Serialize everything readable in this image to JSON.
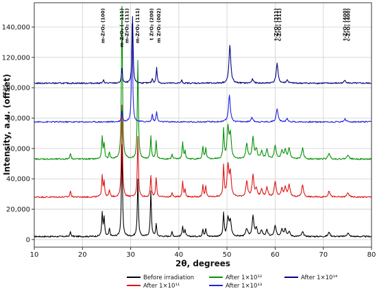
{
  "chart_data": {
    "type": "line",
    "xlabel": "2θ, degrees",
    "ylabel": "Intensity, a.u. (offset)",
    "xlim": [
      10,
      80
    ],
    "ylim": [
      -5000,
      156000
    ],
    "x_ticks": [
      10,
      20,
      30,
      40,
      50,
      60,
      70,
      80
    ],
    "y_ticks": [
      0,
      20000,
      40000,
      60000,
      80000,
      100000,
      120000,
      140000
    ],
    "x_tick_labels": [
      "10",
      "20",
      "30",
      "40",
      "50",
      "60",
      "70",
      "80"
    ],
    "y_tick_labels": [
      "0",
      "20,000",
      "40,000",
      "60,000",
      "80,000",
      "100,000",
      "120,000",
      "140,000"
    ],
    "grid": "major gridlines on both axes",
    "legend_placement": "bottom, below axis",
    "peak_annotations": [
      {
        "label": "m-ZrO₂ (100)",
        "x": 24.3
      },
      {
        "label": "m-ZrO₂ (−111)",
        "x": 28.2
      },
      {
        "label": "m-ZrO₂ (111)",
        "x": 29.3
      },
      {
        "label": "m-ZrO₂ (111)",
        "x": 31.5
      },
      {
        "label": "t ZrO₂ (200)",
        "x": 34.4
      },
      {
        "label": "m ZrO₂ (002)",
        "x": 35.9
      },
      {
        "label": "t-ZrO₂ (311)",
        "x": 60.2
      },
      {
        "label": "c-ZrO₂ (311)",
        "x": 60.9
      },
      {
        "label": "t-ZrO₂ (400)",
        "x": 74.5
      },
      {
        "label": "c-ZrO₂ (400)",
        "x": 75.2
      }
    ],
    "series": [
      {
        "name": "Before irradiation",
        "color": "#000000",
        "baseline": 2000,
        "peaks": [
          [
            17.5,
            3000
          ],
          [
            24.1,
            15000
          ],
          [
            24.5,
            12000
          ],
          [
            25.6,
            5000
          ],
          [
            28.2,
            60000
          ],
          [
            31.5,
            38000
          ],
          [
            34.2,
            30000
          ],
          [
            35.3,
            8000
          ],
          [
            38.6,
            3000
          ],
          [
            40.8,
            7000
          ],
          [
            41.3,
            4000
          ],
          [
            45.0,
            5000
          ],
          [
            45.6,
            5000
          ],
          [
            49.3,
            15000
          ],
          [
            50.2,
            12000
          ],
          [
            50.7,
            10000
          ],
          [
            54.1,
            5000
          ],
          [
            55.4,
            13000
          ],
          [
            56.1,
            5000
          ],
          [
            57.2,
            4000
          ],
          [
            58.3,
            4000
          ],
          [
            60.0,
            7000
          ],
          [
            61.4,
            5000
          ],
          [
            62.1,
            5000
          ],
          [
            62.9,
            3000
          ],
          [
            65.7,
            3000
          ],
          [
            71.2,
            3000
          ],
          [
            75.1,
            2500
          ]
        ]
      },
      {
        "name": "After 1×10¹¹",
        "color": "#e01010",
        "baseline": 28000,
        "peaks": [
          [
            17.5,
            4000
          ],
          [
            24.1,
            14000
          ],
          [
            24.5,
            10000
          ],
          [
            25.6,
            4500
          ],
          [
            28.2,
            60000
          ],
          [
            31.5,
            40000
          ],
          [
            34.2,
            14000
          ],
          [
            35.3,
            13000
          ],
          [
            38.6,
            3000
          ],
          [
            40.8,
            10000
          ],
          [
            41.3,
            5000
          ],
          [
            45.0,
            8000
          ],
          [
            45.6,
            7000
          ],
          [
            49.3,
            20000
          ],
          [
            50.2,
            20000
          ],
          [
            50.7,
            15000
          ],
          [
            54.1,
            10000
          ],
          [
            55.4,
            14000
          ],
          [
            56.1,
            5000
          ],
          [
            57.2,
            5000
          ],
          [
            58.3,
            6000
          ],
          [
            60.0,
            10000
          ],
          [
            61.4,
            5000
          ],
          [
            62.1,
            6000
          ],
          [
            62.9,
            8000
          ],
          [
            65.7,
            8000
          ],
          [
            71.2,
            4000
          ],
          [
            75.1,
            3000
          ]
        ]
      },
      {
        "name": "After 1×10¹²",
        "color": "#009000",
        "baseline": 53000,
        "peaks": [
          [
            17.5,
            4000
          ],
          [
            24.1,
            14000
          ],
          [
            24.5,
            10000
          ],
          [
            25.6,
            4500
          ],
          [
            28.2,
            101000
          ],
          [
            31.5,
            65000
          ],
          [
            34.2,
            15000
          ],
          [
            35.3,
            12000
          ],
          [
            38.6,
            3000
          ],
          [
            40.8,
            11000
          ],
          [
            41.3,
            5000
          ],
          [
            45.0,
            8000
          ],
          [
            45.6,
            7000
          ],
          [
            49.3,
            19000
          ],
          [
            50.2,
            20000
          ],
          [
            50.7,
            16000
          ],
          [
            54.1,
            10000
          ],
          [
            55.4,
            14000
          ],
          [
            56.1,
            6000
          ],
          [
            57.2,
            5000
          ],
          [
            58.3,
            6000
          ],
          [
            60.0,
            9000
          ],
          [
            61.4,
            5000
          ],
          [
            62.1,
            6000
          ],
          [
            62.9,
            7000
          ],
          [
            65.7,
            7000
          ],
          [
            71.2,
            4000
          ],
          [
            75.1,
            3000
          ]
        ]
      },
      {
        "name": "After 1×10¹³",
        "color": "#2020e0",
        "baseline": 77500,
        "peaks": [
          [
            28.2,
            8000
          ],
          [
            30.3,
            65000
          ],
          [
            34.5,
            5000
          ],
          [
            35.4,
            7000
          ],
          [
            50.5,
            18000
          ],
          [
            55.2,
            3000
          ],
          [
            60.4,
            9000
          ],
          [
            62.5,
            2000
          ],
          [
            74.5,
            2000
          ]
        ]
      },
      {
        "name": "After 1×10¹⁴",
        "color": "#000080",
        "baseline": 103000,
        "peaks": [
          [
            24.4,
            2000
          ],
          [
            28.2,
            10000
          ],
          [
            30.4,
            44000
          ],
          [
            34.5,
            3000
          ],
          [
            35.4,
            10000
          ],
          [
            40.6,
            2000
          ],
          [
            50.6,
            25000
          ],
          [
            55.3,
            2500
          ],
          [
            60.4,
            13000
          ],
          [
            62.5,
            2000
          ],
          [
            74.5,
            2000
          ]
        ]
      }
    ],
    "legend_entries": [
      {
        "label": "Before irradiation",
        "color": "#000000"
      },
      {
        "label": "After 1×10¹²",
        "color": "#009000"
      },
      {
        "label": "After 1×10¹⁴",
        "color": "#000080"
      },
      {
        "label": "After 1×10¹¹",
        "color": "#e01010"
      },
      {
        "label": "After 1×10¹³",
        "color": "#2020e0"
      }
    ]
  }
}
